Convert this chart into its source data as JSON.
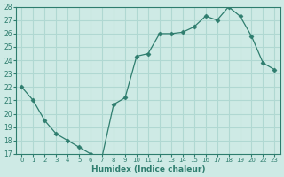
{
  "x_indices": [
    0,
    1,
    2,
    3,
    4,
    5,
    6,
    7,
    8,
    9,
    10,
    11,
    12,
    13,
    14,
    15,
    16,
    17,
    18,
    19,
    20,
    21,
    22
  ],
  "x_labels": [
    "0",
    "1",
    "2",
    "3",
    "4",
    "5",
    "6",
    "7",
    "8",
    "9",
    "10",
    "11",
    "12",
    "13",
    "14",
    "15",
    "16",
    "17",
    "18",
    "19",
    "20",
    "22",
    "23"
  ],
  "y": [
    22,
    21,
    19.5,
    18.5,
    18,
    17.5,
    17,
    16.8,
    20.7,
    21.2,
    24.3,
    24.5,
    26,
    26,
    26.1,
    26.5,
    27.3,
    27,
    28,
    27.3,
    25.8,
    23.8,
    23.3
  ],
  "line_color": "#2e7d6e",
  "marker": "D",
  "marker_size": 2.5,
  "background_color": "#ceeae5",
  "grid_color": "#b0d8d2",
  "xlabel": "Humidex (Indice chaleur)",
  "ylim_low": 17,
  "ylim_high": 28,
  "yticks": [
    17,
    18,
    19,
    20,
    21,
    22,
    23,
    24,
    25,
    26,
    27,
    28
  ]
}
